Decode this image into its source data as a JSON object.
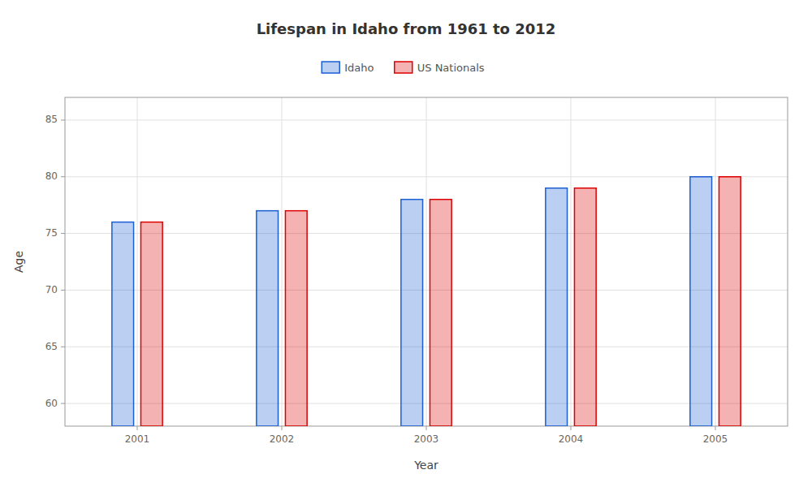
{
  "chart_data": {
    "type": "bar",
    "title": "Lifespan in Idaho from 1961 to 2012",
    "x_label": "Year",
    "y_label": "Age",
    "categories": [
      "2001",
      "2002",
      "2003",
      "2004",
      "2005"
    ],
    "series": [
      {
        "name": "Idaho",
        "color": "#1a5fd4",
        "values": [
          76,
          77,
          78,
          79,
          80
        ]
      },
      {
        "name": "US Nationals",
        "color": "#dd0000",
        "values": [
          76,
          77,
          78,
          79,
          80
        ]
      }
    ],
    "ylim": [
      58,
      87
    ],
    "yticks": [
      60,
      65,
      70,
      75,
      80,
      85
    ],
    "grid": true,
    "legend": "top"
  }
}
